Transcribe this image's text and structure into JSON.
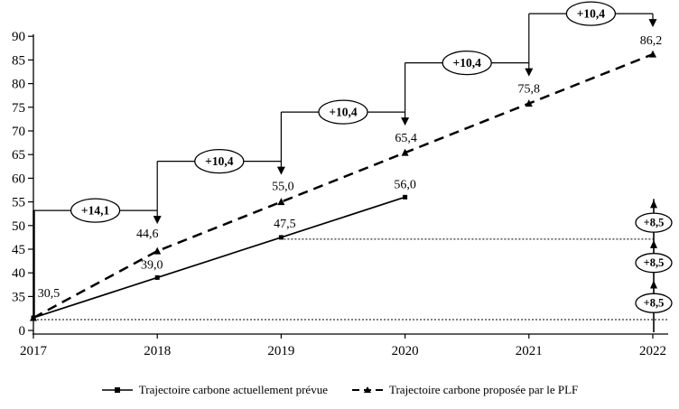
{
  "chart_data": {
    "type": "line",
    "title": "",
    "xlabel": "",
    "ylabel": "",
    "grid": false,
    "axis_break_between": [
      0,
      30
    ],
    "x_axis": {
      "tick_labels": [
        "2017",
        "2018",
        "2019",
        "2020",
        "2021",
        "2022"
      ],
      "tick_values": [
        2017,
        2018,
        2019,
        2020,
        2021,
        2022
      ]
    },
    "y_axis": {
      "tick_labels": [
        "90",
        "85",
        "80",
        "75",
        "70",
        "65",
        "60",
        "55",
        "50",
        "45",
        "40",
        "35",
        "0"
      ],
      "tick_values": [
        90,
        85,
        80,
        75,
        70,
        65,
        60,
        55,
        50,
        45,
        40,
        35,
        0
      ],
      "ylim": [
        0,
        90
      ]
    },
    "series": [
      {
        "name": "Trajectoire carbone actuellement prévue",
        "line_style": "solid",
        "marker": "square",
        "x": [
          2017,
          2018,
          2019,
          2020
        ],
        "values": [
          30.5,
          39.0,
          47.5,
          56.0
        ],
        "point_labels": [
          "30,5",
          "39,0",
          "47,5",
          "56,0"
        ]
      },
      {
        "name": "Trajectoire carbone proposée par le PLF",
        "line_style": "dashed",
        "marker": "triangle",
        "x": [
          2017,
          2018,
          2019,
          2020,
          2021,
          2022
        ],
        "values": [
          30.5,
          44.6,
          55.0,
          65.4,
          75.8,
          86.2
        ],
        "point_labels": [
          "",
          "44,6",
          "55,0",
          "65,4",
          "75,8",
          "86,2"
        ]
      }
    ],
    "step_annotations": [
      {
        "label": "+14,1",
        "from_x": 2017,
        "to_x": 2018,
        "target_value": 44.6
      },
      {
        "label": "+10,4",
        "from_x": 2018,
        "to_x": 2019,
        "target_value": 55.0
      },
      {
        "label": "+10,4",
        "from_x": 2019,
        "to_x": 2020,
        "target_value": 65.4
      },
      {
        "label": "+10,4",
        "from_x": 2020,
        "to_x": 2021,
        "target_value": 75.8
      },
      {
        "label": "+10,4",
        "from_x": 2021,
        "to_x": 2022,
        "target_value": 86.2
      }
    ],
    "right_step_annotations": {
      "x": 2022,
      "base_value": 30.5,
      "steps": [
        {
          "label": "+8,5",
          "to_value": 39.0
        },
        {
          "label": "+8,5",
          "to_value": 47.5
        },
        {
          "label": "+8,5",
          "to_value": 56.0
        }
      ]
    },
    "dotted_reference_lines": [
      {
        "value": 47.5,
        "from_x": 2019
      },
      {
        "value": 30.5,
        "from_x": 2017
      }
    ],
    "colors": {
      "line": "#000000",
      "background": "#ffffff",
      "ellipse_fill": "#ffffff"
    },
    "legend_position": "bottom"
  },
  "legend": {
    "items": [
      {
        "label": "Trajectoire carbone actuellement prévue"
      },
      {
        "label": "Trajectoire carbone proposée par le PLF"
      }
    ]
  }
}
